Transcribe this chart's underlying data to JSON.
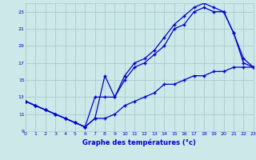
{
  "xlabel": "Graphe des températures (°c)",
  "bg_color": "#cce8e8",
  "grid_color": "#aacccc",
  "line_color": "#0000cc",
  "line1_x": [
    0,
    1,
    2,
    3,
    4,
    5,
    6,
    7,
    8,
    9,
    10,
    11,
    12,
    13,
    14,
    15,
    16,
    17,
    18,
    19,
    20,
    21,
    22,
    23
  ],
  "line1_y": [
    12.5,
    12.0,
    11.5,
    11.0,
    10.5,
    10.0,
    9.5,
    10.5,
    15.5,
    13.0,
    15.5,
    17.0,
    17.5,
    18.5,
    20.0,
    21.5,
    22.5,
    23.5,
    24.0,
    23.5,
    23.0,
    20.5,
    17.5,
    16.5
  ],
  "line2_x": [
    0,
    1,
    2,
    3,
    4,
    5,
    6,
    7,
    8,
    9,
    10,
    11,
    12,
    13,
    14,
    15,
    16,
    17,
    18,
    19,
    20,
    21,
    22,
    23
  ],
  "line2_y": [
    12.5,
    12.0,
    11.5,
    11.0,
    10.5,
    10.0,
    9.5,
    13.0,
    13.0,
    13.0,
    15.0,
    16.5,
    17.0,
    18.0,
    19.0,
    21.0,
    21.5,
    23.0,
    23.5,
    23.0,
    23.0,
    20.5,
    17.0,
    16.5
  ],
  "line3_x": [
    0,
    1,
    2,
    3,
    4,
    5,
    6,
    7,
    8,
    9,
    10,
    11,
    12,
    13,
    14,
    15,
    16,
    17,
    18,
    19,
    20,
    21,
    22,
    23
  ],
  "line3_y": [
    12.5,
    12.0,
    11.5,
    11.0,
    10.5,
    10.0,
    9.5,
    10.5,
    10.5,
    11.0,
    12.0,
    12.5,
    13.0,
    13.5,
    14.5,
    14.5,
    15.0,
    15.5,
    15.5,
    16.0,
    16.0,
    16.5,
    16.5,
    16.5
  ],
  "xlim": [
    0,
    23
  ],
  "ylim": [
    9,
    24
  ],
  "yticks": [
    9,
    11,
    13,
    15,
    17,
    19,
    21,
    23
  ],
  "xticks": [
    0,
    1,
    2,
    3,
    4,
    5,
    6,
    7,
    8,
    9,
    10,
    11,
    12,
    13,
    14,
    15,
    16,
    17,
    18,
    19,
    20,
    21,
    22,
    23
  ],
  "marker": "+"
}
